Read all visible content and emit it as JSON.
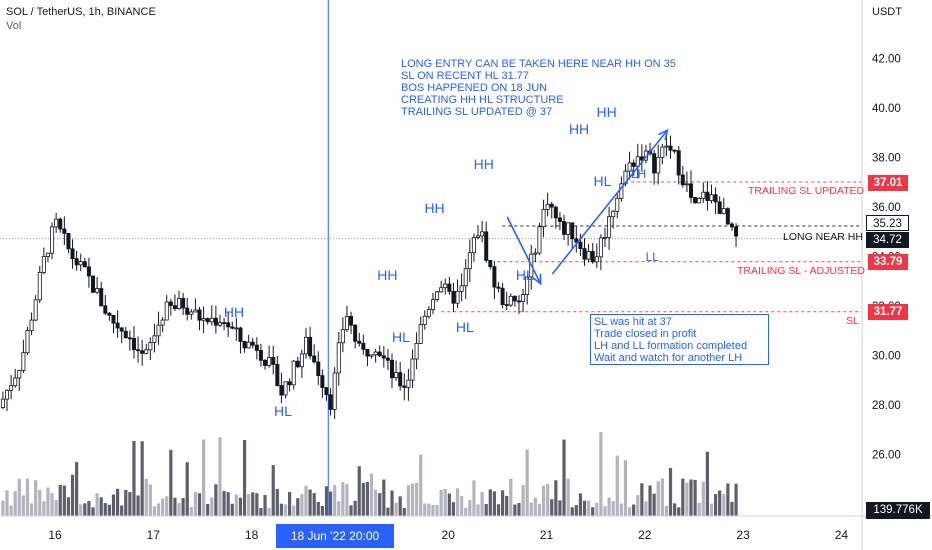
{
  "header": {
    "title": "SOL / TetherUS, 1h, BINANCE",
    "volume_label": "Vol"
  },
  "currency": "USDT",
  "notes": {
    "main": [
      "LONG ENTRY CAN BE TAKEN HERE NEAR HH ON 35",
      "SL ON RECENT HL 31.77",
      "BOS HAPPENED ON 18 JUN",
      "CREATING HH HL STRUCTURE",
      "TRAILING SL UPDATED @ 37"
    ],
    "box": [
      "SL was hit at 37",
      "Trade closed in profit",
      "LH and LL formation completed",
      "Wait and watch for another LH"
    ]
  },
  "structure_labels": [
    {
      "text": "HH",
      "x": 17.82,
      "y": 31.7
    },
    {
      "text": "HL",
      "x": 18.33,
      "y": 27.7
    },
    {
      "text": "HH",
      "x": 19.38,
      "y": 33.2
    },
    {
      "text": "HL",
      "x": 19.53,
      "y": 30.7
    },
    {
      "text": "HH",
      "x": 19.86,
      "y": 35.9
    },
    {
      "text": "HL",
      "x": 20.18,
      "y": 31.1
    },
    {
      "text": "HH",
      "x": 20.36,
      "y": 37.7
    },
    {
      "text": "HL",
      "x": 20.79,
      "y": 33.2
    },
    {
      "text": "HH",
      "x": 21.33,
      "y": 39.1
    },
    {
      "text": "HH",
      "x": 21.61,
      "y": 39.8
    },
    {
      "text": "HL",
      "x": 21.58,
      "y": 37.0
    },
    {
      "text": "LH",
      "x": 21.96,
      "y": 37.25
    },
    {
      "text": "LL",
      "x": 22.11,
      "y": 33.9
    }
  ],
  "levels": [
    {
      "value": 37.01,
      "label": "TRAILING SL UPDATED",
      "color": "#f23645",
      "x_start": 21.8
    },
    {
      "value": 35.23,
      "label": "",
      "color": "#131722",
      "x_start": 20.55
    },
    {
      "value": 34.72,
      "label": "LONG NEAR HH",
      "color": "#131722",
      "x_start": 14.5
    },
    {
      "value": 33.79,
      "label": "TRAILING SL - ADJUSTED",
      "color": "#f23645",
      "x_start": 20.5
    },
    {
      "value": 31.77,
      "label": "SL",
      "color": "#f23645",
      "x_start": 19.93
    }
  ],
  "price_tags": [
    {
      "value": "37.01",
      "kind": "red"
    },
    {
      "value": "35.23",
      "kind": "outline"
    },
    {
      "value": "34.72",
      "kind": "current"
    },
    {
      "value": "33.79",
      "kind": "red"
    },
    {
      "value": "31.77",
      "kind": "red"
    }
  ],
  "date_tag": "18 Jun '22  20:00",
  "volume_tag": "139.776K",
  "colors": {
    "accent": "#2962ff",
    "candle": "#131722",
    "level_red": "#f23645",
    "volume_up": "#b2b5be",
    "volume_down": "#5d606b"
  },
  "chart_data": {
    "type": "candlestick",
    "title": "SOL / TetherUS, 1h, BINANCE",
    "x_axis": {
      "range": [
        15.45,
        24.45
      ],
      "tick_labels": [
        "16",
        "17",
        "18",
        "20",
        "21",
        "22",
        "23",
        "24"
      ],
      "tick_values": [
        16,
        17,
        18,
        20,
        21,
        22,
        23,
        24
      ],
      "note": "day of June 2022 (x=19 unlabeled, covered by the cursor date tag)"
    },
    "y_axis": {
      "range": [
        23.2,
        44.8
      ],
      "tick_values": [
        26,
        28,
        30,
        32,
        34,
        36,
        38,
        40,
        42
      ],
      "tick_labels": [
        "26.00",
        "28.00",
        "30.00",
        "32.00",
        "34.00",
        "36.00",
        "38.00",
        "40.00",
        "42.00"
      ]
    },
    "cursor_x": 18.78,
    "price_path": [
      [
        15.47,
        27.9
      ],
      [
        15.7,
        29.8
      ],
      [
        15.95,
        34.2
      ],
      [
        16.05,
        35.3
      ],
      [
        16.2,
        34.1
      ],
      [
        16.4,
        33.0
      ],
      [
        16.6,
        31.5
      ],
      [
        16.8,
        30.8
      ],
      [
        16.95,
        29.8
      ],
      [
        17.15,
        31.8
      ],
      [
        17.35,
        32.1
      ],
      [
        17.55,
        31.4
      ],
      [
        17.75,
        31.5
      ],
      [
        17.95,
        30.5
      ],
      [
        18.1,
        30.4
      ],
      [
        18.25,
        29.4
      ],
      [
        18.35,
        28.5
      ],
      [
        18.6,
        30.5
      ],
      [
        18.75,
        29.1
      ],
      [
        18.85,
        28.1
      ],
      [
        18.92,
        30.0
      ],
      [
        19.0,
        31.8
      ],
      [
        19.15,
        30.0
      ],
      [
        19.3,
        30.5
      ],
      [
        19.5,
        29.0
      ],
      [
        19.62,
        28.8
      ],
      [
        19.7,
        30.4
      ],
      [
        19.82,
        31.8
      ],
      [
        19.95,
        33.0
      ],
      [
        20.05,
        32.3
      ],
      [
        20.17,
        32.5
      ],
      [
        20.27,
        34.2
      ],
      [
        20.36,
        35.2
      ],
      [
        20.5,
        33.0
      ],
      [
        20.58,
        32.3
      ],
      [
        20.66,
        32.2
      ],
      [
        20.74,
        31.9
      ],
      [
        20.82,
        32.6
      ],
      [
        20.9,
        34.0
      ],
      [
        20.96,
        35.0
      ],
      [
        21.05,
        36.4
      ],
      [
        21.17,
        35.2
      ],
      [
        21.3,
        35.0
      ],
      [
        21.43,
        34.2
      ],
      [
        21.53,
        33.9
      ],
      [
        21.68,
        35.5
      ],
      [
        21.78,
        36.8
      ],
      [
        21.9,
        37.8
      ],
      [
        22.02,
        38.2
      ],
      [
        22.14,
        37.7
      ],
      [
        22.26,
        38.5
      ],
      [
        22.36,
        37.9
      ],
      [
        22.45,
        37.0
      ],
      [
        22.55,
        35.9
      ],
      [
        22.65,
        36.5
      ],
      [
        22.73,
        36.3
      ],
      [
        22.81,
        36.0
      ],
      [
        22.88,
        35.3
      ],
      [
        22.95,
        34.7
      ]
    ],
    "volume_scale_max": 139.776
  }
}
